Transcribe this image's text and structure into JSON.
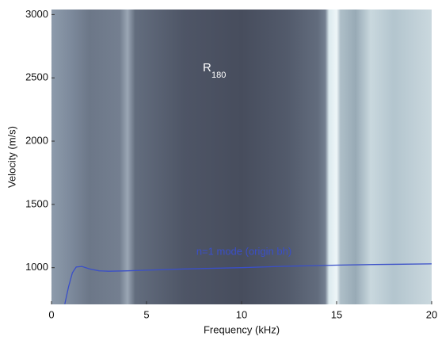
{
  "chart_data": {
    "type": "line",
    "xlabel": "Frequency (kHz)",
    "ylabel": "Velocity (m/s)",
    "annotation": {
      "text": "R",
      "subscript": "180"
    },
    "x": [
      0.7,
      0.9,
      1.1,
      1.3,
      1.6,
      2,
      2.5,
      3,
      4,
      5,
      7,
      10,
      12,
      15,
      17,
      20
    ],
    "series": [
      {
        "name": "n=1 mode (origin bh)",
        "color": "#3a4fc8",
        "values": [
          712,
          850,
          960,
          1005,
          1010,
          990,
          975,
          972,
          975,
          980,
          990,
          1000,
          1010,
          1020,
          1025,
          1030
        ]
      }
    ],
    "xlim": [
      0,
      20
    ],
    "xticks": [
      0,
      5,
      10,
      15,
      20
    ],
    "ylim": [
      710,
      3040
    ],
    "yticks": [
      1000,
      1500,
      2000,
      2500,
      3000
    ]
  }
}
